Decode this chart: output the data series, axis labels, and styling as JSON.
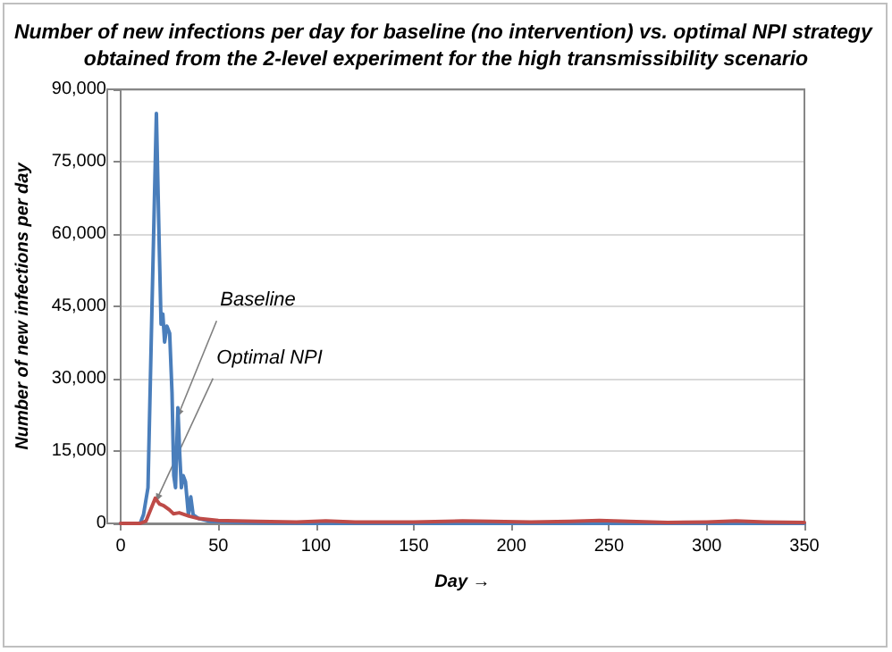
{
  "chart_data": {
    "type": "line",
    "title": "Number of new infections per day for baseline (no intervention) vs. optimal NPI strategy obtained from the 2-level experiment for the high transmissibility scenario",
    "xlabel": "Day →",
    "ylabel": "Number of new infections per day",
    "xlim": [
      0,
      350
    ],
    "xticks": [
      0,
      50,
      100,
      150,
      200,
      250,
      300,
      350
    ],
    "ylim": [
      0,
      90000
    ],
    "yticks": [
      0,
      {
        "value": 15000,
        "label": "15,000"
      },
      {
        "value": 30000,
        "label": "30,000"
      },
      {
        "value": 45000,
        "label": "45,000"
      },
      {
        "value": 60000,
        "label": "60,000"
      },
      {
        "value": 75000,
        "label": "75,000"
      },
      {
        "value": 90000,
        "label": "90,000"
      }
    ],
    "grid": "y",
    "marker": "none",
    "line_style": "solid",
    "annotations": [
      {
        "text": "Baseline",
        "x": 29,
        "y": 22000
      },
      {
        "text": "Optimal NPI",
        "x": 18,
        "y": 4500
      }
    ],
    "series": [
      {
        "color": "#4a7ebb",
        "x": [
          0,
          10,
          11.7,
          14,
          16,
          18.3,
          19.8,
          20.7,
          21.6,
          22.5,
          23.7,
          25.1,
          26.3,
          27.2,
          28.1,
          29.3,
          30.2,
          31.1,
          32,
          33.2,
          34.7,
          35.9,
          37.1,
          40,
          46,
          55,
          70,
          100,
          150,
          200,
          250,
          300,
          350
        ],
        "values": [
          0,
          0,
          1800,
          7400,
          44000,
          85000,
          56700,
          41300,
          43400,
          37600,
          40900,
          39400,
          27100,
          9900,
          7400,
          24000,
          14800,
          7400,
          9900,
          8600,
          1800,
          5500,
          1800,
          1000,
          400,
          300,
          100,
          0,
          0,
          0,
          0,
          0,
          0
        ]
      },
      {
        "color": "#be4b48",
        "x": [
          0,
          10,
          13,
          15,
          17.7,
          20,
          22,
          25,
          27,
          30,
          35,
          40,
          50,
          70,
          90,
          105,
          120,
          150,
          175,
          190,
          210,
          230,
          245,
          260,
          280,
          300,
          315,
          330,
          350
        ],
        "values": [
          0,
          0,
          500,
          2500,
          5200,
          4000,
          3700,
          2800,
          2000,
          2200,
          1500,
          1000,
          600,
          400,
          300,
          500,
          300,
          300,
          500,
          400,
          300,
          400,
          600,
          400,
          200,
          300,
          500,
          300,
          200
        ]
      }
    ]
  }
}
